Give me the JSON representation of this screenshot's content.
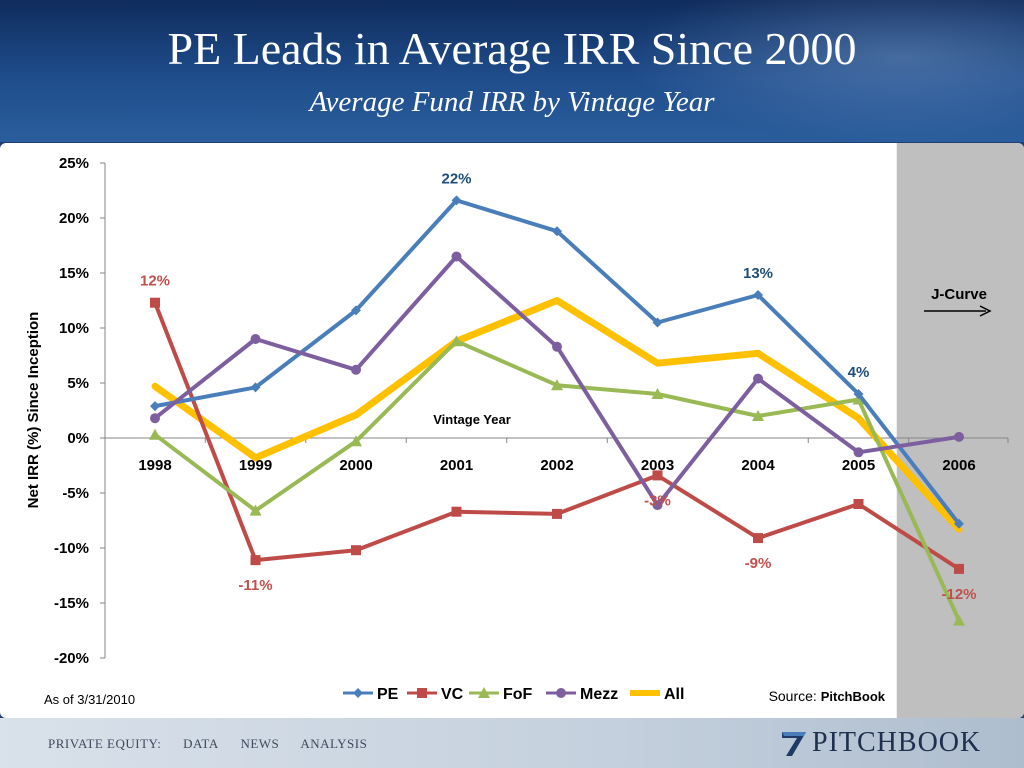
{
  "slide": {
    "title": "PE Leads in Average IRR Since 2000",
    "subtitle": "Average Fund IRR by Vintage Year",
    "as_of": "As of 3/31/2010",
    "source_prefix": "Source: ",
    "source_name": "PitchBook",
    "jcurve_label": "J-Curve"
  },
  "footer": {
    "nav": [
      "PRIVATE EQUITY:",
      "DATA",
      "NEWS",
      "ANALYSIS"
    ],
    "logo_text": "PITCHBOOK"
  },
  "colors": {
    "PE": "#4a7ebb",
    "VC": "#be4b48",
    "FoF": "#98b954",
    "Mezz": "#7d5fa0",
    "All": "#ffc000",
    "shade": "#bfbfbf"
  },
  "chart_data": {
    "type": "line",
    "xlabel": "Vintage Year",
    "ylabel": "Net IRR (%) Since Inception",
    "categories": [
      "1998",
      "1999",
      "2000",
      "2001",
      "2002",
      "2003",
      "2004",
      "2005",
      "2006"
    ],
    "ylim": [
      -20,
      25
    ],
    "yticks": [
      25,
      20,
      15,
      10,
      5,
      0,
      -5,
      -10,
      -15,
      -20
    ],
    "ytick_labels": [
      "25%",
      "20%",
      "15%",
      "10%",
      "5%",
      "0%",
      "-5%",
      "-10%",
      "-15%",
      "-20%"
    ],
    "shaded_category": "2006",
    "legend_position": "bottom",
    "series": [
      {
        "name": "PE",
        "marker": "diamond",
        "values": [
          2.9,
          4.6,
          11.6,
          21.6,
          18.8,
          10.5,
          13.0,
          4.0,
          -7.8
        ]
      },
      {
        "name": "VC",
        "marker": "square",
        "values": [
          12.3,
          -11.1,
          -10.2,
          -6.7,
          -6.9,
          -3.4,
          -9.1,
          -6.0,
          -11.9
        ]
      },
      {
        "name": "FoF",
        "marker": "triangle",
        "values": [
          0.3,
          -6.6,
          -0.3,
          8.8,
          4.8,
          4.0,
          2.0,
          3.5,
          -16.6
        ]
      },
      {
        "name": "Mezz",
        "marker": "circle",
        "values": [
          1.8,
          9.0,
          6.2,
          16.5,
          8.3,
          -6.1,
          5.4,
          -1.3,
          0.1
        ]
      },
      {
        "name": "All",
        "marker": "none",
        "values": [
          4.7,
          -1.8,
          2.1,
          8.8,
          12.5,
          6.8,
          7.7,
          1.8,
          -8.3
        ]
      }
    ],
    "annotations": [
      {
        "series": "PE",
        "category": "2001",
        "text": "22%"
      },
      {
        "series": "PE",
        "category": "2004",
        "text": "13%"
      },
      {
        "series": "PE",
        "category": "2005",
        "text": "4%"
      },
      {
        "series": "VC",
        "category": "1998",
        "text": "12%"
      },
      {
        "series": "VC",
        "category": "1999",
        "text": "-11%"
      },
      {
        "series": "VC",
        "category": "2003",
        "text": "-3%"
      },
      {
        "series": "VC",
        "category": "2004",
        "text": "-9%"
      },
      {
        "series": "VC",
        "category": "2006",
        "text": "-12%"
      }
    ]
  }
}
